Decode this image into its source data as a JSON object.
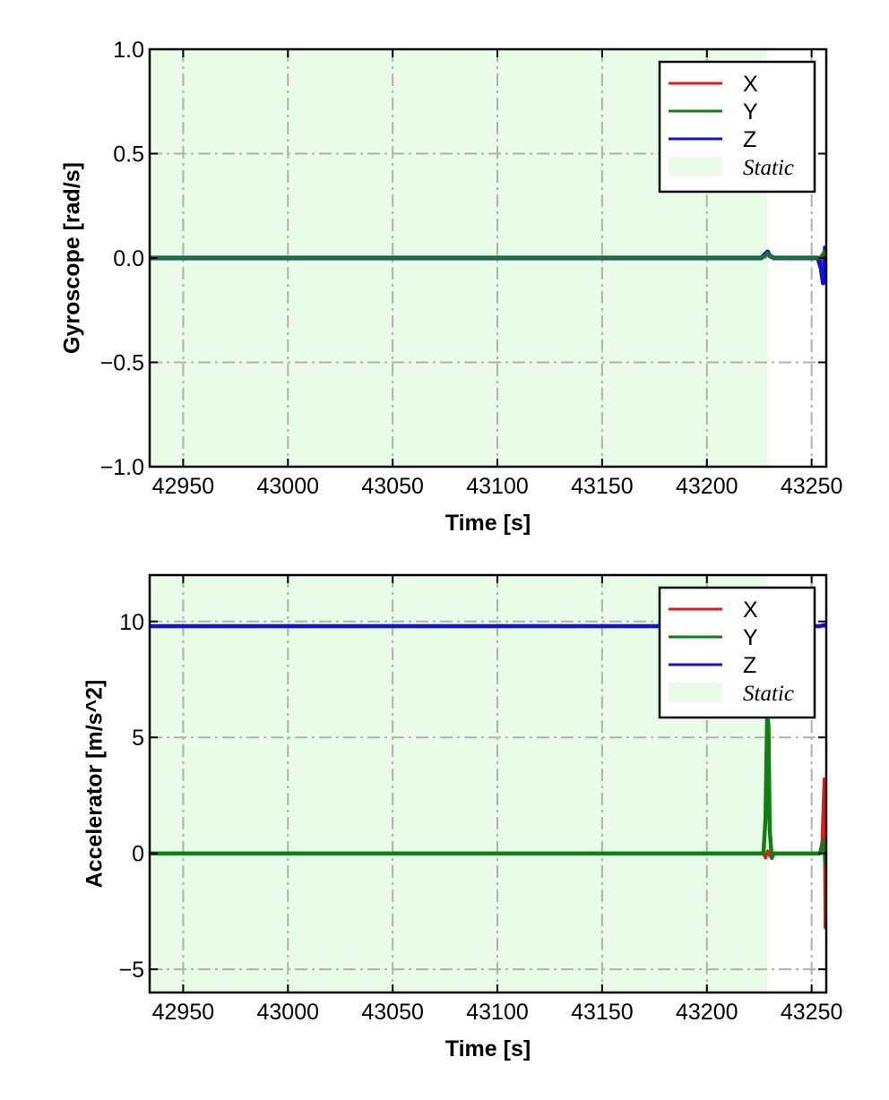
{
  "colors": {
    "X": "#e41a1c",
    "Y": "#137f13",
    "Z": "#1010e0",
    "static": "#e9fce8",
    "grid": "#b0b0b0"
  },
  "chart_data": [
    {
      "type": "line",
      "xlabel": "Time [s]",
      "ylabel": "Gyroscope [rad/s]",
      "xlim": [
        42934,
        43257
      ],
      "ylim": [
        -1.0,
        1.0
      ],
      "xticks": [
        "42950",
        "43000",
        "43050",
        "43100",
        "43150",
        "43200",
        "43250"
      ],
      "yticks": [
        "−1.0",
        "−0.5",
        "0.0",
        "0.5",
        "1.0"
      ],
      "grid": true,
      "legend_position": "upper right",
      "legend": [
        "X",
        "Y",
        "Z",
        "Static"
      ],
      "static_region": [
        42934,
        43229
      ],
      "series": [
        {
          "name": "X",
          "x": [
            42934,
            43226,
            43228,
            43229,
            43230,
            43232,
            43254,
            43256,
            43256.5,
            43257
          ],
          "y": [
            0.0,
            0.0,
            0.01,
            0.02,
            0.01,
            0.0,
            0.0,
            -0.03,
            0.02,
            0.0
          ]
        },
        {
          "name": "Y",
          "x": [
            42934,
            43226,
            43228,
            43229,
            43230,
            43232,
            43254,
            43256,
            43257
          ],
          "y": [
            0.0,
            0.0,
            0.015,
            0.025,
            0.01,
            0.0,
            0.0,
            0.03,
            0.0
          ]
        },
        {
          "name": "Z",
          "x": [
            42934,
            43226,
            43228,
            43229,
            43230,
            43232,
            43253,
            43254.5,
            43255.5,
            43256,
            43256.5,
            43257
          ],
          "y": [
            0.0,
            0.0,
            0.02,
            0.03,
            0.01,
            0.0,
            0.0,
            -0.05,
            -0.12,
            -0.11,
            0.05,
            0.0
          ]
        }
      ]
    },
    {
      "type": "line",
      "xlabel": "Time [s]",
      "ylabel": "Accelerator [m/s^2]",
      "xlim": [
        42934,
        43257
      ],
      "ylim": [
        -6,
        12
      ],
      "xticks": [
        "42950",
        "43000",
        "43050",
        "43100",
        "43150",
        "43200",
        "43250"
      ],
      "yticks": [
        "−5",
        "0",
        "5",
        "10"
      ],
      "yticks_values": [
        -5,
        0,
        5,
        10
      ],
      "grid": true,
      "legend_position": "upper right",
      "legend": [
        "X",
        "Y",
        "Z",
        "Static"
      ],
      "static_region": [
        42934,
        43229
      ],
      "series": [
        {
          "name": "X",
          "x": [
            42934,
            43227,
            43228,
            43229,
            43230,
            43231,
            43254,
            43255,
            43256,
            43256.5,
            43257
          ],
          "y": [
            0.0,
            0.0,
            -0.2,
            0.1,
            -0.1,
            0.0,
            0.0,
            0.5,
            3.2,
            -3.2,
            0.0
          ]
        },
        {
          "name": "Y",
          "x": [
            42934,
            43227,
            43228,
            43228.8,
            43229.4,
            43230,
            43231,
            43232,
            43254,
            43256,
            43256.5,
            43257
          ],
          "y": [
            0.0,
            0.0,
            1.5,
            6.0,
            5.5,
            1.0,
            -0.2,
            0.0,
            0.0,
            0.6,
            -0.4,
            0.0
          ]
        },
        {
          "name": "Z",
          "x": [
            42934,
            43226,
            43227,
            43228,
            43229,
            43230,
            43231,
            43254,
            43256,
            43257
          ],
          "y": [
            9.8,
            9.8,
            9.85,
            9.9,
            9.9,
            9.75,
            9.8,
            9.8,
            9.85,
            9.8
          ]
        }
      ]
    }
  ]
}
